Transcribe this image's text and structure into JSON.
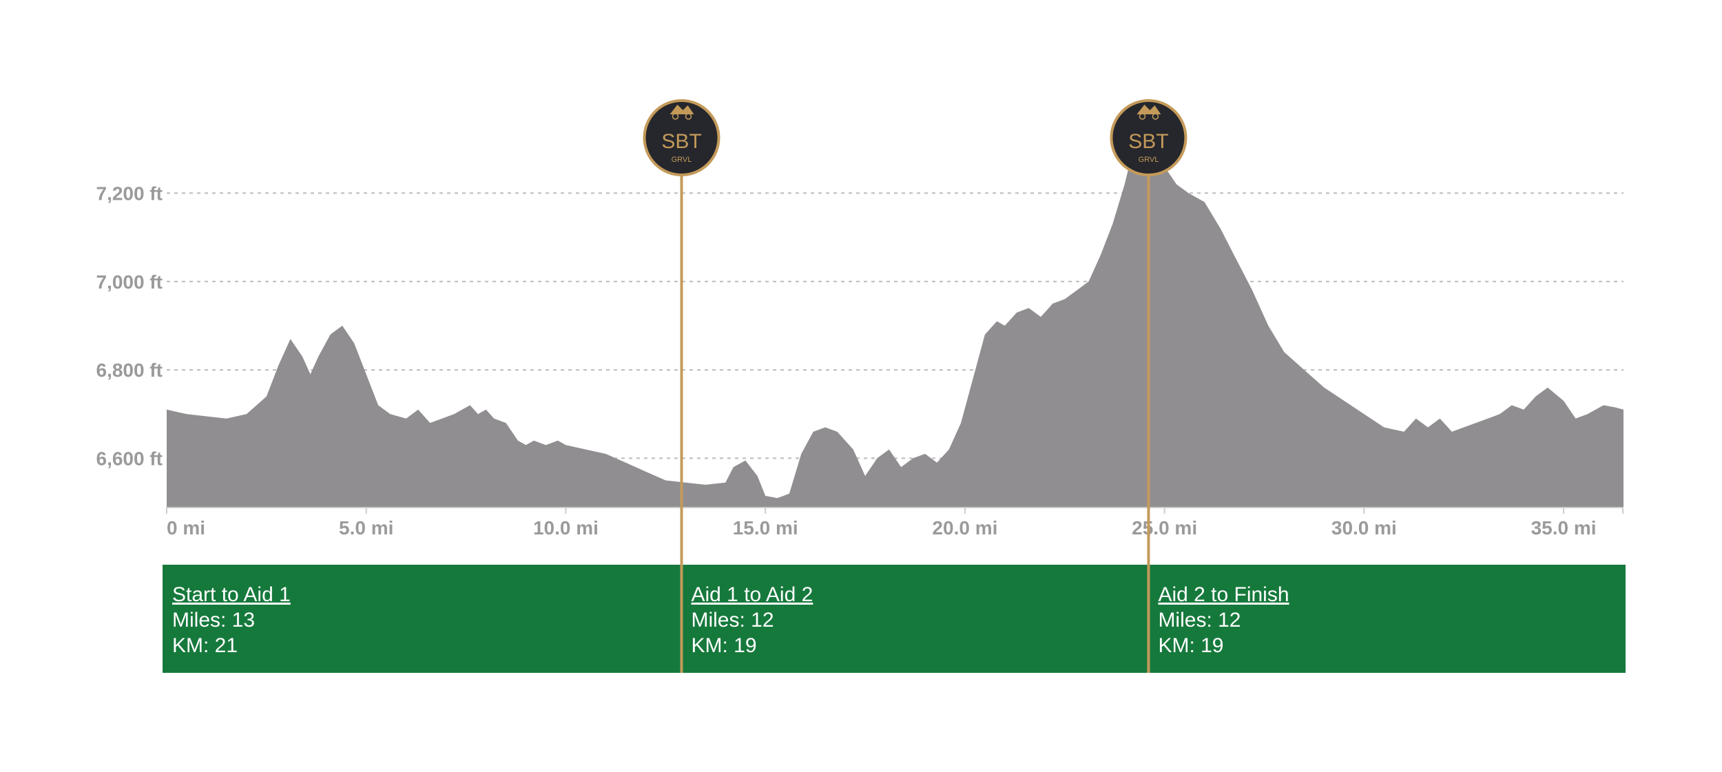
{
  "chart_data": {
    "type": "area",
    "title": "",
    "xlabel": "",
    "ylabel": "",
    "xlim": [
      0,
      36.5
    ],
    "ylim": [
      6490,
      7450
    ],
    "x_ticks": [
      {
        "value": 0,
        "label": "0 mi"
      },
      {
        "value": 5,
        "label": "5.0 mi"
      },
      {
        "value": 10,
        "label": "10.0 mi"
      },
      {
        "value": 15,
        "label": "15.0 mi"
      },
      {
        "value": 20,
        "label": "20.0 mi"
      },
      {
        "value": 25,
        "label": "25.0 mi"
      },
      {
        "value": 30,
        "label": "30.0 mi"
      },
      {
        "value": 35,
        "label": "35.0 mi"
      }
    ],
    "y_ticks": [
      {
        "value": 6600,
        "label": "6,600 ft"
      },
      {
        "value": 6800,
        "label": "6,800 ft"
      },
      {
        "value": 7000,
        "label": "7,000 ft"
      },
      {
        "value": 7200,
        "label": "7,200 ft"
      }
    ],
    "grid": "horizontal-dashed",
    "colors": {
      "area": "#918e91",
      "axis_text": "#9a9a9a",
      "grid": "#bbbbbb",
      "marker_line": "#c49a5a",
      "segment_band": "#16793c",
      "badge_fill": "#26272c",
      "badge_accent": "#c49a5a"
    },
    "series": [
      {
        "x": [
          0,
          0.5,
          1.0,
          1.5,
          2.0,
          2.5,
          2.8,
          3.1,
          3.4,
          3.6,
          3.8,
          4.1,
          4.4,
          4.7,
          5.0,
          5.3,
          5.6,
          6.0,
          6.3,
          6.6,
          6.9,
          7.2,
          7.6,
          7.8,
          8.0,
          8.2,
          8.5,
          8.8,
          9.0,
          9.2,
          9.5,
          9.8,
          10.0,
          10.5,
          11.0,
          11.5,
          12.0,
          12.5,
          13.0,
          13.5,
          14.0,
          14.2,
          14.5,
          14.8,
          15.0,
          15.3,
          15.6,
          15.9,
          16.2,
          16.5,
          16.8,
          17.2,
          17.5,
          17.8,
          18.1,
          18.4,
          18.7,
          19.0,
          19.3,
          19.6,
          19.9,
          20.2,
          20.5,
          20.8,
          21.0,
          21.3,
          21.6,
          21.9,
          22.2,
          22.5,
          22.8,
          23.1,
          23.4,
          23.7,
          24.0,
          24.3,
          24.5,
          24.7,
          25.0,
          25.3,
          25.6,
          26.0,
          26.4,
          26.8,
          27.2,
          27.6,
          28.0,
          28.5,
          29.0,
          29.5,
          30.0,
          30.5,
          31.0,
          31.3,
          31.6,
          31.9,
          32.2,
          32.5,
          32.8,
          33.1,
          33.4,
          33.7,
          34.0,
          34.3,
          34.6,
          35.0,
          35.3,
          35.6,
          36.0,
          36.3,
          36.5
        ],
        "y": [
          6710,
          6700,
          6695,
          6690,
          6700,
          6740,
          6810,
          6870,
          6830,
          6790,
          6830,
          6880,
          6900,
          6860,
          6790,
          6720,
          6700,
          6690,
          6710,
          6680,
          6690,
          6700,
          6720,
          6700,
          6710,
          6690,
          6680,
          6640,
          6630,
          6640,
          6630,
          6640,
          6630,
          6620,
          6610,
          6590,
          6570,
          6550,
          6545,
          6540,
          6545,
          6580,
          6595,
          6560,
          6515,
          6510,
          6520,
          6610,
          6660,
          6670,
          6660,
          6620,
          6560,
          6600,
          6620,
          6580,
          6600,
          6610,
          6590,
          6620,
          6680,
          6780,
          6880,
          6910,
          6900,
          6930,
          6940,
          6920,
          6950,
          6960,
          6980,
          7000,
          7060,
          7130,
          7220,
          7330,
          7380,
          7330,
          7260,
          7220,
          7200,
          7180,
          7120,
          7050,
          6980,
          6900,
          6840,
          6800,
          6760,
          6730,
          6700,
          6670,
          6660,
          6690,
          6670,
          6690,
          6660,
          6670,
          6680,
          6690,
          6700,
          6720,
          6710,
          6740,
          6760,
          6730,
          6690,
          6700,
          6720,
          6715,
          6710
        ]
      }
    ]
  },
  "aid_markers": [
    {
      "mile": 12.9,
      "badge_text": "SBT",
      "badge_subtext": "GRVL",
      "icon": "mountain-bike-logo"
    },
    {
      "mile": 24.6,
      "badge_text": "SBT",
      "badge_subtext": "GRVL",
      "icon": "mountain-bike-logo"
    }
  ],
  "segments": [
    {
      "title": "Start to Aid 1",
      "miles": "Miles: 13",
      "km": "KM: 21"
    },
    {
      "title": "Aid 1 to Aid 2",
      "miles": "Miles: 12",
      "km": "KM: 19"
    },
    {
      "title": "Aid 2 to Finish",
      "miles": "Miles: 12",
      "km": "KM: 19"
    }
  ]
}
